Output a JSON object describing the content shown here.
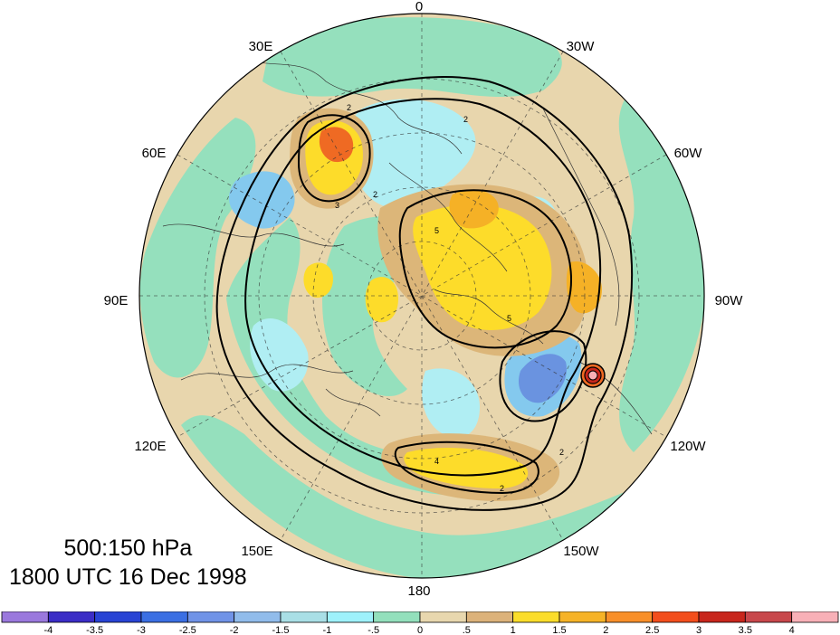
{
  "map": {
    "title_level": "500:150 hPa",
    "title_time": "1800 UTC 16 Dec 1998",
    "projection": "north-polar-stereographic",
    "longitude_labels": [
      "0",
      "30W",
      "60W",
      "90W",
      "120W",
      "150W",
      "180",
      "150E",
      "120E",
      "90E",
      "60E",
      "30E"
    ],
    "contour_labels": [
      "2",
      "2",
      "4",
      "2",
      "2",
      "2",
      "3",
      "5",
      "5"
    ],
    "colors": {
      "ocean_neutral": "#95e0bd",
      "land_neutral": "#e8d6ad",
      "positive_light": "#dcb679",
      "positive_mid": "#fddc2a",
      "positive_strong": "#f5b126",
      "positive_max": "#ef6a23",
      "negative_light": "#b0eef3",
      "negative_mid": "#84c9ee",
      "negative_strong": "#6a93e0"
    }
  },
  "colorbar": {
    "labels": [
      "-4",
      "-3.5",
      "-3",
      "-2.5",
      "-2",
      "-1.5",
      "-1",
      "-.5",
      "0",
      ".5",
      "1",
      "1.5",
      "2",
      "2.5",
      "3",
      "3.5",
      "4"
    ],
    "colors": [
      "#9a78dd",
      "#3b2dc6",
      "#2843d4",
      "#3b6fe3",
      "#7093e7",
      "#91bceb",
      "#a9dfe6",
      "#9ef1fb",
      "#93e0bc",
      "#e8d7ae",
      "#dcb27a",
      "#fbdd2a",
      "#f6b327",
      "#f88f29",
      "#f34e1c",
      "#c8261c",
      "#c8474b",
      "#f8b0b7"
    ]
  }
}
